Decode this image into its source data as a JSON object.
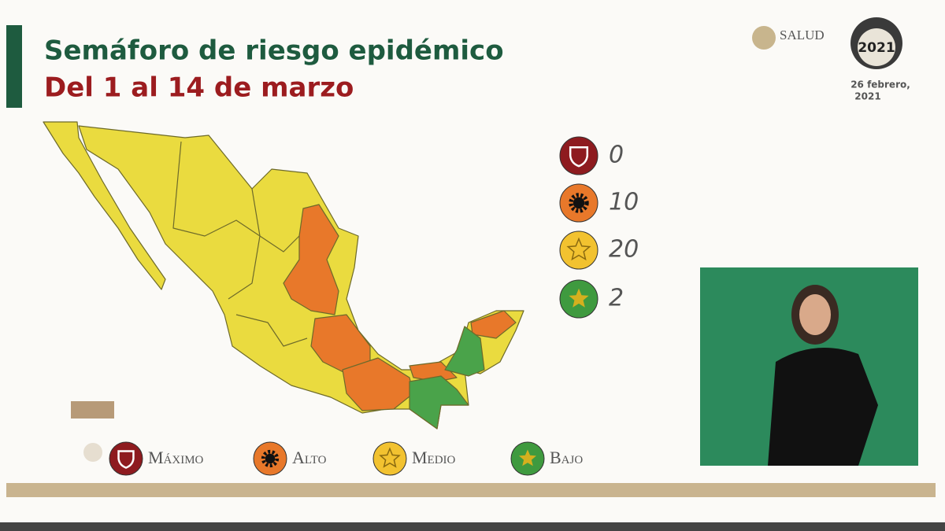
{
  "header": {
    "title": "Semáforo de riesgo epidémico",
    "subtitle": "Del 1 al 14 de marzo"
  },
  "logos": {
    "salud": "SALUD",
    "year_badge": "2021",
    "date_lines": [
      "26 febrero,",
      "2021"
    ]
  },
  "summary": [
    {
      "count": 0,
      "color": "#8e1b1f"
    },
    {
      "count": 10,
      "color": "#e8782a"
    },
    {
      "count": 20,
      "color": "#f2c230"
    },
    {
      "count": 2,
      "color": "#3f9a3f"
    }
  ],
  "legend": [
    {
      "label": "Máximo",
      "color": "#8e1b1f"
    },
    {
      "label": "Alto",
      "color": "#e8782a"
    },
    {
      "label": "Medio",
      "color": "#f2c230"
    },
    {
      "label": "Bajo",
      "color": "#3f9a3f"
    }
  ]
}
